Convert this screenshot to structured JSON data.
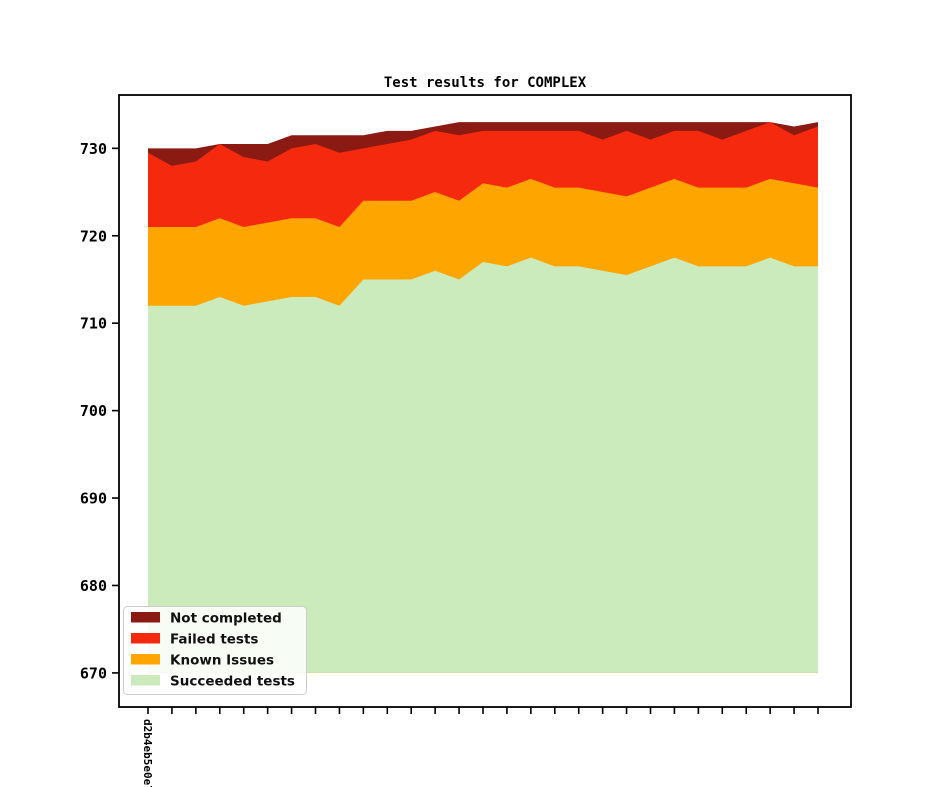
{
  "title": "Test results for COMPLEX",
  "colors": {
    "background": "#ffffff",
    "axis": "#000000",
    "legend_border": "#cccccc",
    "not_completed": "#8B1A12",
    "failed": "#F4290E",
    "known": "#FFA500",
    "succeeded": "#CBEBBC"
  },
  "legend": {
    "items": [
      {
        "label": "Not completed",
        "color": "#8B1A12"
      },
      {
        "label": "Failed tests",
        "color": "#F4290E"
      },
      {
        "label": "Known Issues",
        "color": "#FFA500"
      },
      {
        "label": "Succeeded tests",
        "color": "#CBEBBC"
      }
    ]
  },
  "axes": {
    "y_ticks": [
      670,
      680,
      690,
      700,
      710,
      720,
      730
    ],
    "y_min": 666.1,
    "y_max": 736.1,
    "baseline": 670,
    "x_tick_count": 29,
    "x_first_tick_label": "d2b4eb5e0e7"
  },
  "chart_data": {
    "type": "area",
    "stacked": true,
    "title": "Test results for COMPLEX",
    "xlabel": "",
    "ylabel": "",
    "ylim": [
      666.1,
      736.1
    ],
    "grid": false,
    "legend_position": "lower left",
    "x_count": 29,
    "x_tick_labels_visible": [
      "d2b4eb5e0e7"
    ],
    "baseline": 670,
    "series": [
      {
        "name": "Succeeded tests",
        "color": "#CBEBBC",
        "absolute": true,
        "values": [
          712,
          712,
          712,
          713,
          712,
          712.5,
          713,
          713,
          712,
          715,
          715,
          715,
          716,
          715,
          717,
          716.5,
          717.5,
          716.5,
          716.5,
          716,
          715.5,
          716.5,
          717.5,
          716.5,
          716.5,
          716.5,
          717.5,
          716.5,
          716.5
        ]
      },
      {
        "name": "Known Issues",
        "color": "#FFA500",
        "absolute": false,
        "values": [
          9,
          9,
          9,
          9,
          9,
          9,
          9,
          9,
          9,
          9,
          9,
          9,
          9,
          9,
          9,
          9,
          9,
          9,
          9,
          9,
          9,
          9,
          9,
          9,
          9,
          9,
          9,
          9.5,
          9
        ]
      },
      {
        "name": "Failed tests",
        "color": "#F4290E",
        "absolute": false,
        "values": [
          8.5,
          7,
          7.5,
          8.5,
          8,
          7,
          8,
          8.5,
          8.5,
          6,
          6.5,
          7,
          7,
          7.5,
          6,
          6.5,
          5.5,
          6.5,
          6.5,
          6,
          7.5,
          5.5,
          5.5,
          6.5,
          5.5,
          6.5,
          6.5,
          5.5,
          7
        ]
      },
      {
        "name": "Not completed",
        "color": "#8B1A12",
        "absolute": false,
        "values": [
          0.5,
          2,
          1.5,
          0,
          1.5,
          2,
          1.5,
          1,
          2,
          1.5,
          1.5,
          1,
          0.5,
          1.5,
          1,
          1,
          1,
          1,
          1,
          2,
          1,
          2,
          1,
          1,
          2,
          1,
          0,
          1,
          0.5
        ]
      }
    ]
  }
}
